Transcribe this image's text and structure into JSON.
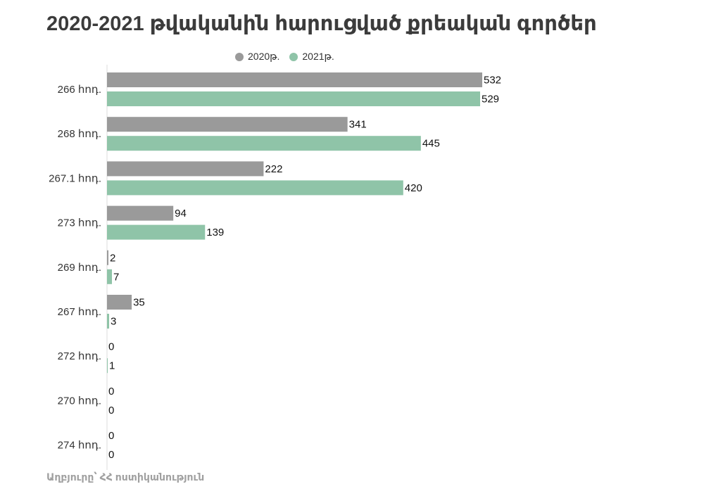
{
  "chart_data": {
    "type": "bar",
    "orientation": "horizontal",
    "title": "2020-2021 թվականին հարուցված քրեական գործեր",
    "categories": [
      "266 հոդ.",
      "268 հոդ.",
      "267.1 հոդ.",
      "273 հոդ.",
      "269 հոդ.",
      "267 հոդ.",
      "272 հոդ.",
      "270 հոդ.",
      "274 հոդ."
    ],
    "series": [
      {
        "name": "2020թ.",
        "color": "#9a9a9a",
        "values": [
          532,
          341,
          222,
          94,
          2,
          35,
          0,
          0,
          0
        ]
      },
      {
        "name": "2021թ.",
        "color": "#8fc4a8",
        "values": [
          529,
          445,
          420,
          139,
          7,
          3,
          1,
          0,
          0
        ]
      }
    ],
    "xlim": [
      0,
      532
    ],
    "grid": false,
    "legend_position": "top",
    "data_labels": true
  },
  "source": "Աղբյուրը՝ ՀՀ ոստիկանություն"
}
